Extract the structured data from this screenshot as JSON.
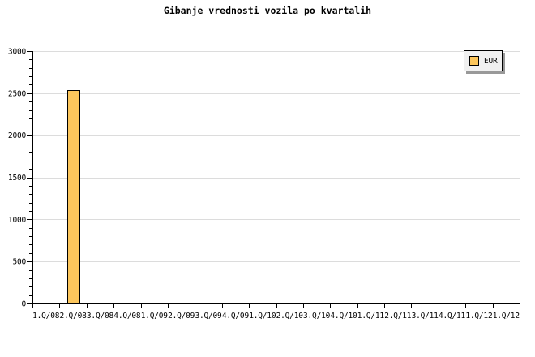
{
  "page": {
    "background": "#ffffff"
  },
  "chart_data": {
    "type": "bar",
    "title": "Gibanje vrednosti vozila po kvartalih",
    "categories": [
      "1.Q/08",
      "2.Q/08",
      "3.Q/08",
      "4.Q/08",
      "1.Q/09",
      "2.Q/09",
      "3.Q/09",
      "4.Q/09",
      "1.Q/10",
      "2.Q/10",
      "3.Q/10",
      "4.Q/10",
      "1.Q/11",
      "2.Q/11",
      "3.Q/11",
      "4.Q/11",
      "1.Q/12",
      "1.Q/12"
    ],
    "series": [
      {
        "name": "EUR",
        "color": "#FCC65C",
        "values": [
          null,
          2540,
          null,
          null,
          null,
          null,
          null,
          null,
          null,
          null,
          null,
          null,
          null,
          null,
          null,
          null,
          null,
          null
        ]
      }
    ],
    "xlabel": "",
    "ylabel": "",
    "ylim": [
      0,
      3000
    ],
    "yticks": [
      0,
      500,
      1000,
      1500,
      2000,
      2500,
      3000
    ],
    "minor_ytick_step": 100,
    "grid": true,
    "legend_position": "top-right"
  },
  "legend": {
    "items": [
      {
        "label": "EUR",
        "color": "#FCC65C"
      }
    ]
  },
  "colors": {
    "bar_fill": "#FCC65C",
    "bar_border": "#000000",
    "gridline": "#DCDCDC",
    "axis": "#000000",
    "text": "#000000",
    "legend_background": "#F0F0F0",
    "legend_border": "#000000",
    "legend_shadow": "#999999"
  }
}
